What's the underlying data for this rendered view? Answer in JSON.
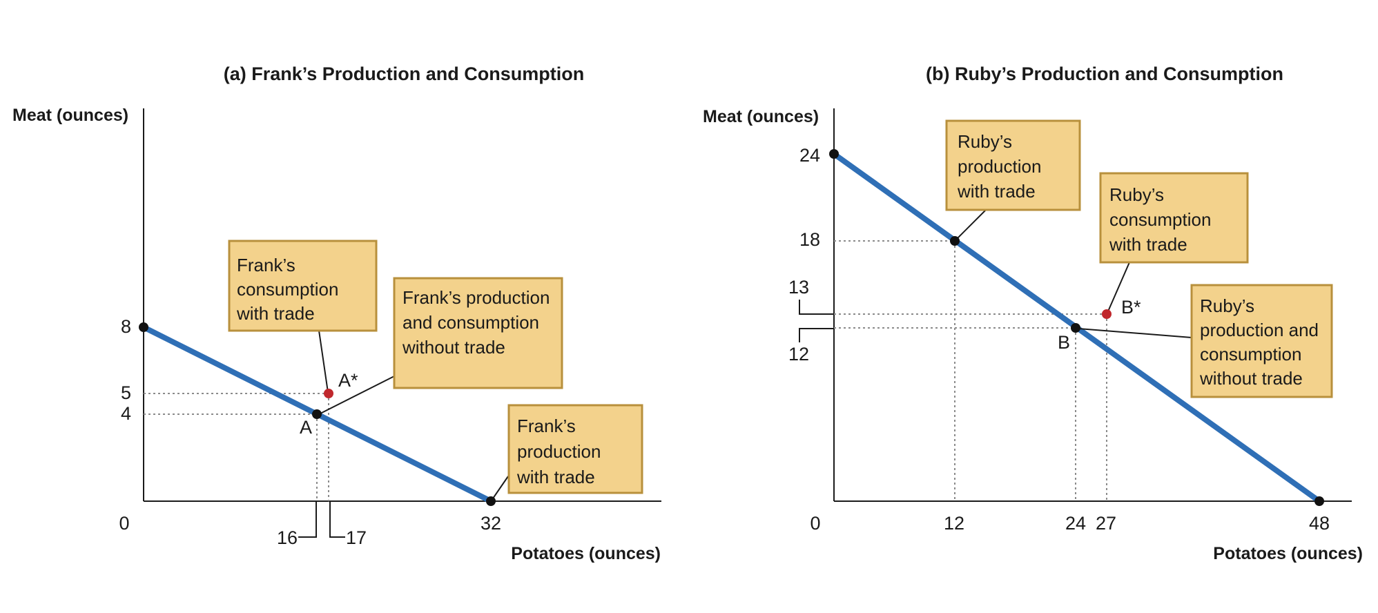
{
  "chart_data": [
    {
      "type": "line",
      "title": "(a) Frank’s Production and Consumption",
      "xlabel": "Potatoes (ounces)",
      "ylabel": "Meat (ounces)",
      "xlim": [
        0,
        38
      ],
      "ylim": [
        0,
        18
      ],
      "origin_label": "0",
      "x_ticks": [
        {
          "value": 16,
          "label": "16"
        },
        {
          "value": 17,
          "label": "17"
        },
        {
          "value": 32,
          "label": "32"
        }
      ],
      "y_ticks": [
        {
          "value": 8,
          "label": "8"
        },
        {
          "value": 5,
          "label": "5"
        },
        {
          "value": 4,
          "label": "4"
        }
      ],
      "series": [
        {
          "x": [
            0,
            32
          ],
          "y": [
            8,
            0
          ],
          "color": "#2f6fb6"
        }
      ],
      "points": [
        {
          "x": 0,
          "y": 8,
          "label": "",
          "color": "#111111"
        },
        {
          "x": 16,
          "y": 4,
          "label": "A",
          "color": "#111111"
        },
        {
          "x": 17,
          "y": 5,
          "label": "A*",
          "color": "#c0282d"
        },
        {
          "x": 32,
          "y": 0,
          "label": "",
          "color": "#111111"
        }
      ],
      "annotations": [
        {
          "lines": [
            "Frank’s",
            "consumption",
            "with trade"
          ],
          "points_to": "A*"
        },
        {
          "lines": [
            "Frank’s production",
            "and consumption",
            "without trade"
          ],
          "points_to": "A"
        },
        {
          "lines": [
            "Frank’s",
            "production",
            "with trade"
          ],
          "points_to": "(32, 0)"
        }
      ]
    },
    {
      "type": "line",
      "title": "(b) Ruby’s Production and Consumption",
      "xlabel": "Potatoes (ounces)",
      "ylabel": "Meat (ounces)",
      "xlim": [
        0,
        48
      ],
      "ylim": [
        0,
        27
      ],
      "origin_label": "0",
      "x_ticks": [
        {
          "value": 12,
          "label": "12"
        },
        {
          "value": 24,
          "label": "24"
        },
        {
          "value": 27,
          "label": "27"
        },
        {
          "value": 48,
          "label": "48"
        }
      ],
      "y_ticks": [
        {
          "value": 24,
          "label": "24"
        },
        {
          "value": 18,
          "label": "18"
        },
        {
          "value": 13,
          "label": "13"
        },
        {
          "value": 12,
          "label": "12"
        }
      ],
      "series": [
        {
          "x": [
            0,
            48
          ],
          "y": [
            24,
            0
          ],
          "color": "#2f6fb6"
        }
      ],
      "points": [
        {
          "x": 0,
          "y": 24,
          "label": "",
          "color": "#111111"
        },
        {
          "x": 12,
          "y": 18,
          "label": "",
          "color": "#111111"
        },
        {
          "x": 24,
          "y": 12,
          "label": "B",
          "color": "#111111"
        },
        {
          "x": 27,
          "y": 13,
          "label": "B*",
          "color": "#c0282d"
        },
        {
          "x": 48,
          "y": 0,
          "label": "",
          "color": "#111111"
        }
      ],
      "annotations": [
        {
          "lines": [
            "Ruby’s",
            "production",
            "with trade"
          ],
          "points_to": "(12, 18)"
        },
        {
          "lines": [
            "Ruby’s",
            "consumption",
            "with trade"
          ],
          "points_to": "B*"
        },
        {
          "lines": [
            "Ruby’s",
            "production and",
            "consumption",
            "without trade"
          ],
          "points_to": "B"
        }
      ]
    }
  ]
}
